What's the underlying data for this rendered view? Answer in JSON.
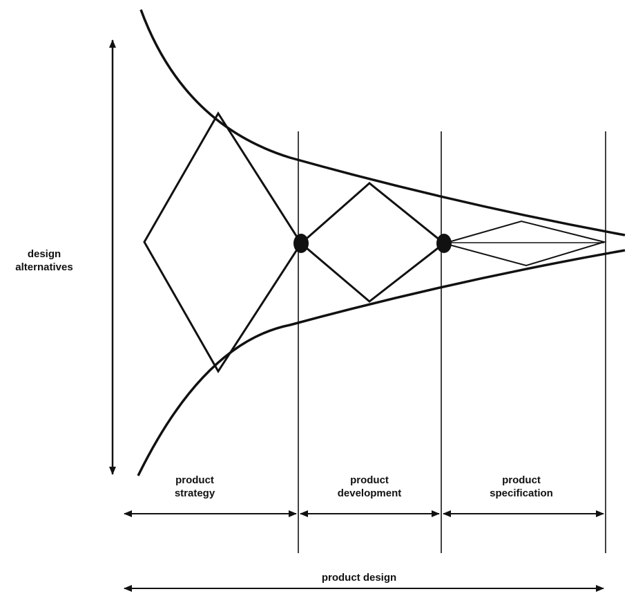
{
  "diagram": {
    "labels": {
      "design_alternatives": [
        "design",
        "alternatives"
      ],
      "product_strategy": [
        "product",
        "strategy"
      ],
      "product_development": [
        "product",
        "development"
      ],
      "product_specification": [
        "product",
        "specification"
      ],
      "product_design": "product design"
    },
    "colors": {
      "stroke": "#111111",
      "background": "#ffffff"
    }
  }
}
